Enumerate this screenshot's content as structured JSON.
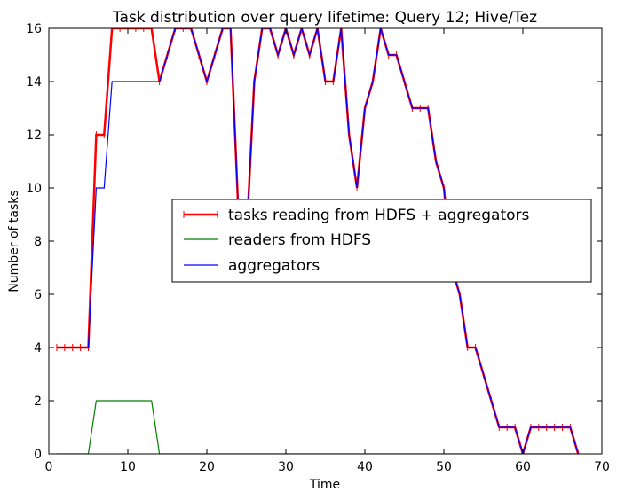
{
  "chart_data": {
    "type": "line",
    "title": "Task distribution over query lifetime: Query 12; Hive/Tez",
    "xlabel": "Time",
    "ylabel": "Number of tasks",
    "xlim": [
      0,
      70
    ],
    "ylim": [
      0,
      16
    ],
    "xticks": [
      0,
      10,
      20,
      30,
      40,
      50,
      60,
      70
    ],
    "yticks": [
      0,
      2,
      4,
      6,
      8,
      10,
      12,
      14,
      16
    ],
    "grid": false,
    "legend_position": "center-right",
    "series": [
      {
        "name": "tasks reading from HDFS + aggregators",
        "color": "#ff0000",
        "markers": "vertical-tick",
        "x": [
          1,
          2,
          3,
          4,
          5,
          6,
          7,
          8,
          9,
          10,
          11,
          12,
          13,
          14,
          15,
          16,
          17,
          18,
          19,
          20,
          21,
          22,
          23,
          24,
          25,
          26,
          27,
          28,
          29,
          30,
          31,
          32,
          33,
          34,
          35,
          36,
          37,
          38,
          39,
          40,
          41,
          42,
          43,
          44,
          45,
          46,
          47,
          48,
          49,
          50,
          51,
          52,
          53,
          54,
          55,
          56,
          57,
          58,
          59,
          60,
          61,
          62,
          63,
          64,
          65,
          66,
          67
        ],
        "values": [
          4,
          4,
          4,
          4,
          4,
          12,
          12,
          16,
          16,
          16,
          16,
          16,
          16,
          14,
          15,
          16,
          16,
          16,
          15,
          14,
          15,
          16,
          16,
          9,
          8,
          14,
          16,
          16,
          15,
          16,
          15,
          16,
          15,
          16,
          14,
          14,
          16,
          12,
          10,
          13,
          14,
          16,
          15,
          15,
          14,
          13,
          13,
          13,
          11,
          10,
          7,
          6,
          4,
          4,
          3,
          2,
          1,
          1,
          1,
          0,
          1,
          1,
          1,
          1,
          1,
          1,
          0
        ]
      },
      {
        "name": "readers from HDFS",
        "color": "#008000",
        "x": [
          1,
          5,
          6,
          13,
          14,
          67
        ],
        "values": [
          0,
          0,
          2,
          2,
          0,
          0
        ]
      },
      {
        "name": "aggregators",
        "color": "#0000ff",
        "x": [
          1,
          2,
          3,
          4,
          5,
          6,
          7,
          8,
          9,
          10,
          11,
          12,
          13,
          14,
          15,
          16,
          17,
          18,
          19,
          20,
          21,
          22,
          23,
          24,
          25,
          26,
          27,
          28,
          29,
          30,
          31,
          32,
          33,
          34,
          35,
          36,
          37,
          38,
          39,
          40,
          41,
          42,
          43,
          44,
          45,
          46,
          47,
          48,
          49,
          50,
          51,
          52,
          53,
          54,
          55,
          56,
          57,
          58,
          59,
          60,
          61,
          62,
          63,
          64,
          65,
          66,
          67
        ],
        "values": [
          4,
          4,
          4,
          4,
          4,
          10,
          10,
          14,
          14,
          14,
          14,
          14,
          14,
          14,
          15,
          16,
          16,
          16,
          15,
          14,
          15,
          16,
          16,
          9,
          8,
          14,
          16,
          16,
          15,
          16,
          15,
          16,
          15,
          16,
          14,
          14,
          16,
          12,
          10,
          13,
          14,
          16,
          15,
          15,
          14,
          13,
          13,
          13,
          11,
          10,
          7,
          6,
          4,
          4,
          3,
          2,
          1,
          1,
          1,
          0,
          1,
          1,
          1,
          1,
          1,
          1,
          0
        ]
      }
    ]
  }
}
